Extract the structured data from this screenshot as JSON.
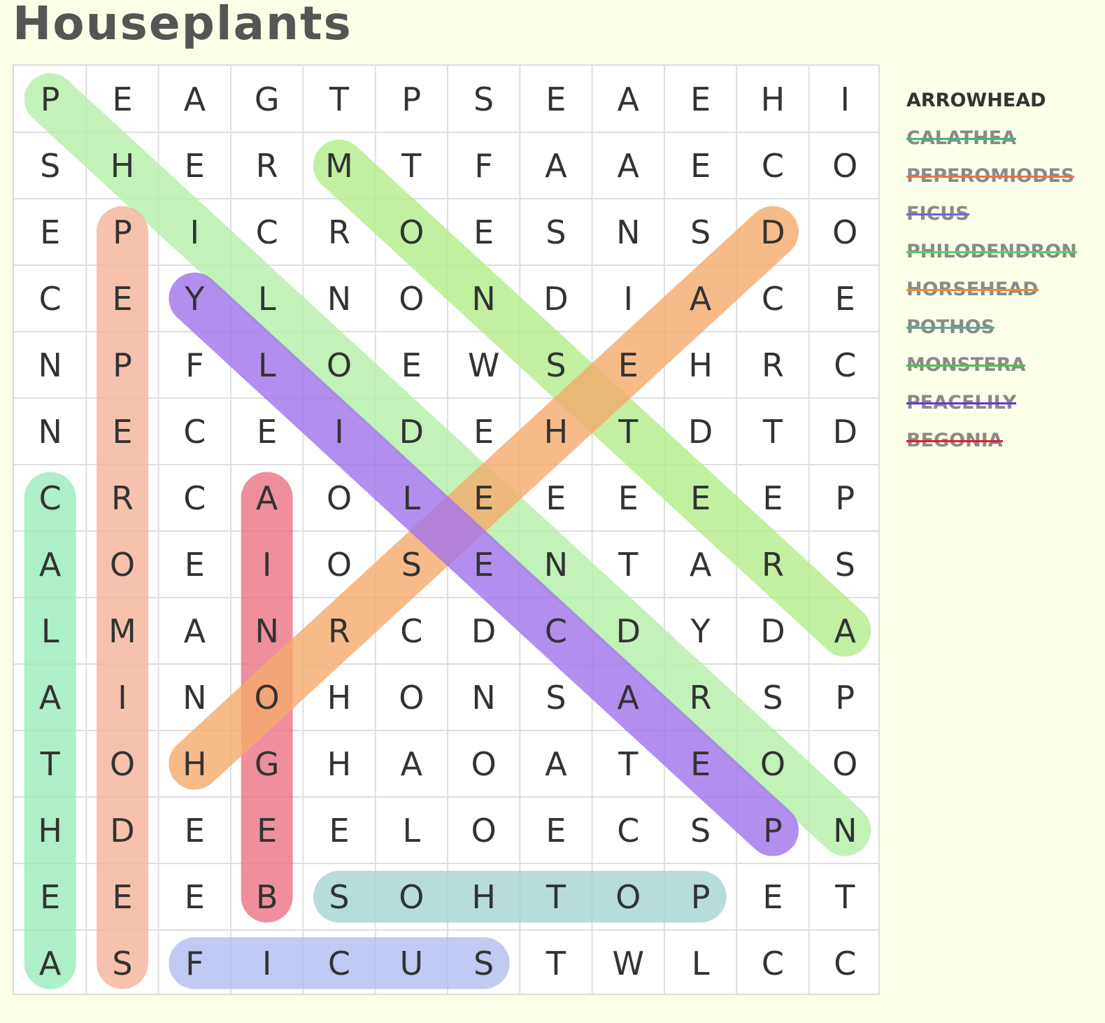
{
  "title": "Houseplants",
  "grid": [
    "PEAGTPSEAEHI",
    "SHERMTFAAECO",
    "EPICROESNSDO",
    "CEYLNONDIACE",
    "NPFLOEWSEHRC",
    "NECEIDEHTDTD",
    "CRCAOLEEEEEP",
    "AOEIOSENTARS",
    "LMANRCDCDYDA",
    "AINOHONSARSP",
    "TOHGHAOATEOO",
    "HDEEELOECSPN",
    "EEEBSOHTOPET",
    "ASFICUSTWLCC"
  ],
  "found": [
    {
      "word": "PHILODENDRON",
      "start": [
        0,
        0
      ],
      "end": [
        11,
        11
      ],
      "color": "#b5f0a8"
    },
    {
      "word": "MONSTERA",
      "start": [
        1,
        4
      ],
      "end": [
        8,
        11
      ],
      "color": "#b3ed89"
    },
    {
      "word": "PEPEROMIODES",
      "start": [
        2,
        1
      ],
      "end": [
        13,
        1
      ],
      "color": "#f5b39a"
    },
    {
      "word": "CALATHEA",
      "start": [
        6,
        0
      ],
      "end": [
        13,
        0
      ],
      "color": "#98ecbb"
    },
    {
      "word": "BEGONIA",
      "start": [
        12,
        3
      ],
      "end": [
        6,
        3
      ],
      "color": "#ec7487"
    },
    {
      "word": "HORSEHEAD",
      "start": [
        10,
        2
      ],
      "end": [
        2,
        10
      ],
      "color": "#f4ab6c"
    },
    {
      "word": "PEACELILY",
      "start": [
        11,
        10
      ],
      "end": [
        3,
        2
      ],
      "color": "#a074ec"
    },
    {
      "word": "POTHOS",
      "start": [
        12,
        9
      ],
      "end": [
        12,
        4
      ],
      "color": "#a7d4d0"
    },
    {
      "word": "FICUS",
      "start": [
        13,
        2
      ],
      "end": [
        13,
        6
      ],
      "color": "#b2bdf0"
    }
  ],
  "wordlist": [
    {
      "text": "ARROWHEAD",
      "found": false,
      "color": "#333333"
    },
    {
      "text": "CALATHEA",
      "found": true,
      "color": "#3cba7a"
    },
    {
      "text": "PEPEROMIODES",
      "found": true,
      "color": "#f07040"
    },
    {
      "text": "FICUS",
      "found": true,
      "color": "#6a6ae0"
    },
    {
      "text": "PHILODENDRON",
      "found": true,
      "color": "#5ad060"
    },
    {
      "text": "HORSEHEAD",
      "found": true,
      "color": "#f08a30"
    },
    {
      "text": "POTHOS",
      "found": true,
      "color": "#5aa8a0"
    },
    {
      "text": "MONSTERA",
      "found": true,
      "color": "#4cc04c"
    },
    {
      "text": "PEACELILY",
      "found": true,
      "color": "#6a30e0"
    },
    {
      "text": "BEGONIA",
      "found": true,
      "color": "#e02030"
    }
  ]
}
